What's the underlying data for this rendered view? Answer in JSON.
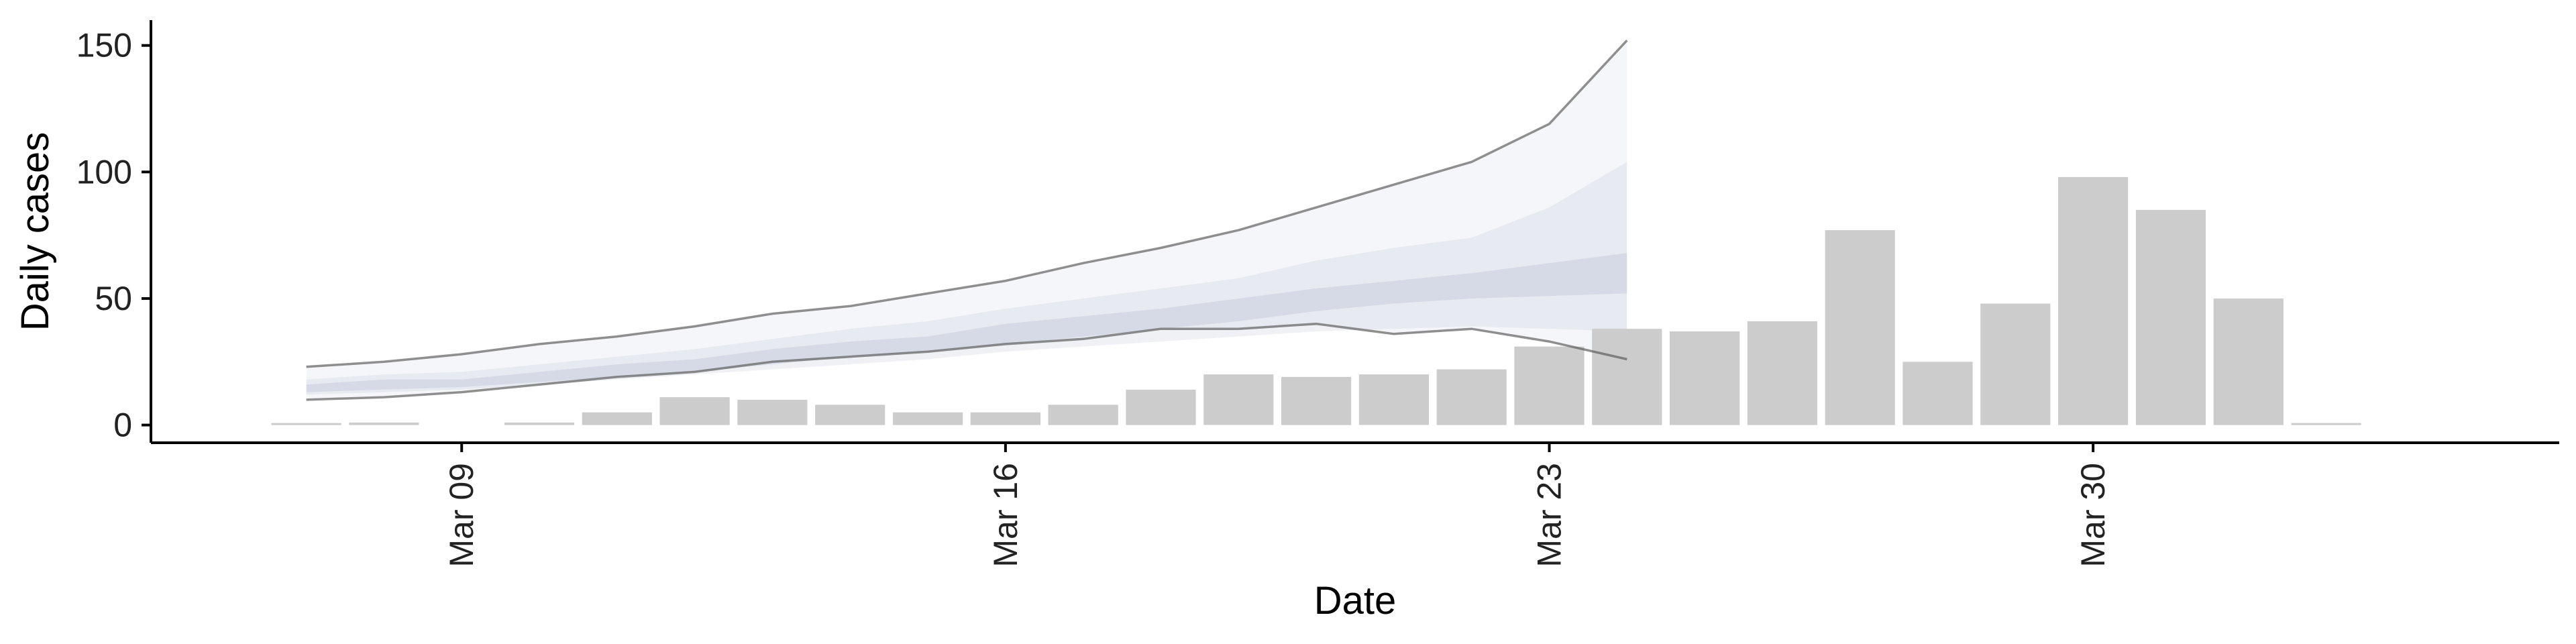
{
  "chart_data": {
    "type": "bar",
    "xlabel": "Date",
    "ylabel": "Daily cases",
    "x_tick_labels": [
      "Mar 09",
      "Mar 16",
      "Mar 23",
      "Mar 30"
    ],
    "x_tick_dates": [
      "2020-03-09",
      "2020-03-16",
      "2020-03-23",
      "2020-03-30"
    ],
    "y_ticks": [
      0,
      50,
      100,
      150
    ],
    "ylim": [
      -7,
      160
    ],
    "xlim": [
      "2020-03-05",
      "2020-04-05"
    ],
    "bar_color": "#cccccc",
    "band_color": "#b7bdd3",
    "line_color": "#555555",
    "bars": {
      "dates": [
        "2020-03-07",
        "2020-03-08",
        "2020-03-10",
        "2020-03-11",
        "2020-03-12",
        "2020-03-13",
        "2020-03-14",
        "2020-03-15",
        "2020-03-16",
        "2020-03-17",
        "2020-03-18",
        "2020-03-19",
        "2020-03-20",
        "2020-03-21",
        "2020-03-22",
        "2020-03-23",
        "2020-03-24",
        "2020-03-25",
        "2020-03-26",
        "2020-03-27",
        "2020-03-28",
        "2020-03-29",
        "2020-03-30",
        "2020-03-31",
        "2020-04-01",
        "2020-04-02"
      ],
      "values": [
        0,
        1,
        1,
        5,
        11,
        10,
        8,
        5,
        5,
        8,
        14,
        20,
        19,
        20,
        22,
        31,
        38,
        37,
        41,
        77,
        25,
        48,
        98,
        85,
        50,
        0
      ]
    },
    "estimate": {
      "dates": [
        "2020-03-07",
        "2020-03-08",
        "2020-03-09",
        "2020-03-10",
        "2020-03-11",
        "2020-03-12",
        "2020-03-13",
        "2020-03-14",
        "2020-03-15",
        "2020-03-16",
        "2020-03-17",
        "2020-03-18",
        "2020-03-19",
        "2020-03-20",
        "2020-03-21",
        "2020-03-22",
        "2020-03-23",
        "2020-03-24"
      ],
      "upper_90": [
        23,
        25,
        28,
        32,
        35,
        39,
        44,
        47,
        52,
        57,
        64,
        70,
        77,
        86,
        95,
        104,
        119,
        152
      ],
      "upper_50": [
        18,
        20,
        21,
        24,
        27,
        30,
        34,
        38,
        41,
        46,
        50,
        54,
        58,
        65,
        70,
        74,
        86,
        104
      ],
      "upper_20": [
        16,
        18,
        18,
        21,
        24,
        26,
        30,
        33,
        35,
        40,
        43,
        46,
        50,
        54,
        57,
        60,
        64,
        68
      ],
      "lower_20": [
        13,
        14,
        15,
        17,
        19,
        21,
        24,
        27,
        29,
        32,
        35,
        38,
        41,
        45,
        48,
        50,
        51,
        52
      ],
      "lower_50": [
        12,
        13,
        14,
        16,
        18,
        20,
        22,
        24,
        26,
        29,
        31,
        33,
        35,
        37,
        38,
        39,
        38,
        37
      ],
      "lower_90": [
        10,
        11,
        13,
        16,
        19,
        21,
        25,
        27,
        29,
        32,
        34,
        38,
        38,
        40,
        36,
        38,
        33,
        26
      ]
    }
  }
}
